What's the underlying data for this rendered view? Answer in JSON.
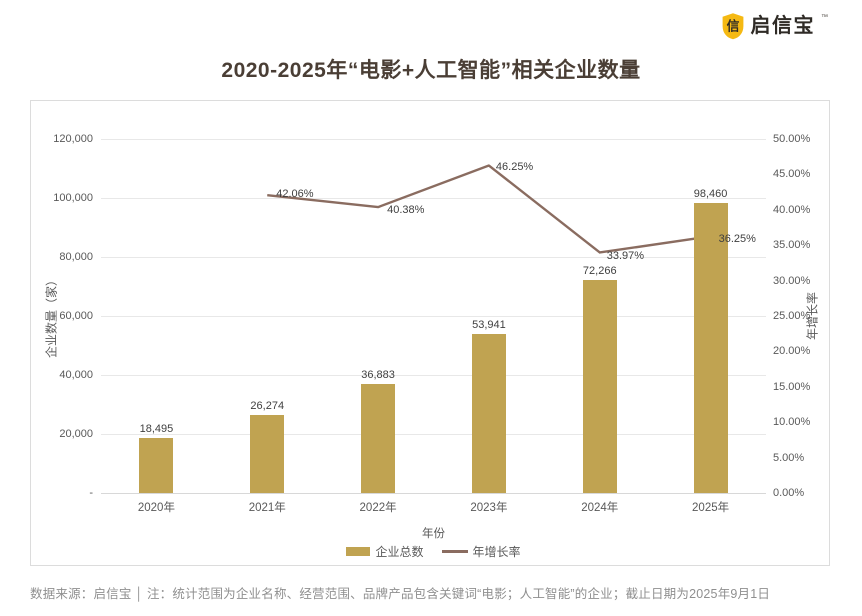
{
  "logo": {
    "brand": "启信宝",
    "trademark": "™",
    "shield_glyph": "信",
    "gold": "#F5B913",
    "dark": "#2F2B26"
  },
  "title": "2020-2025年“电影+人工智能”相关企业数量",
  "footer": "数据来源：启信宝 │ 注：统计范围为企业名称、经营范围、品牌产品包含关键词“电影；人工智能”的企业；截止日期为2025年9月1日",
  "chart_data": {
    "type": "bar+line",
    "categories": [
      "2020年",
      "2021年",
      "2022年",
      "2023年",
      "2024年",
      "2025年"
    ],
    "series": [
      {
        "name": "企业总数",
        "type": "bar",
        "axis": "left",
        "color": "#C0A351",
        "values": [
          18495,
          26274,
          36883,
          53941,
          72266,
          98460
        ],
        "value_labels": [
          "18,495",
          "26,274",
          "36,883",
          "53,941",
          "72,266",
          "98,460"
        ]
      },
      {
        "name": "年增长率",
        "type": "line",
        "axis": "right",
        "color": "#8A6C60",
        "values": [
          null,
          42.06,
          40.38,
          46.25,
          33.97,
          36.25
        ],
        "value_labels": [
          null,
          "42.06%",
          "40.38%",
          "46.25%",
          "33.97%",
          "36.25%"
        ]
      }
    ],
    "left_axis": {
      "title": "企业数量（家）",
      "min": 0,
      "max": 120000,
      "tick_labels": [
        "120,000",
        "100,000",
        "80,000",
        "60,000",
        "40,000",
        "20,000",
        "-"
      ],
      "tick_values": [
        120000,
        100000,
        80000,
        60000,
        40000,
        20000,
        0
      ]
    },
    "right_axis": {
      "title": "年增长率",
      "min": 0,
      "max": 50,
      "tick_labels": [
        "50.00%",
        "45.00%",
        "40.00%",
        "35.00%",
        "30.00%",
        "25.00%",
        "20.00%",
        "15.00%",
        "10.00%",
        "5.00%",
        "0.00%"
      ],
      "tick_values": [
        50,
        45,
        40,
        35,
        30,
        25,
        20,
        15,
        10,
        5,
        0
      ]
    },
    "xlabel": "年份",
    "grid": "horizontal",
    "legend_position": "bottom"
  }
}
